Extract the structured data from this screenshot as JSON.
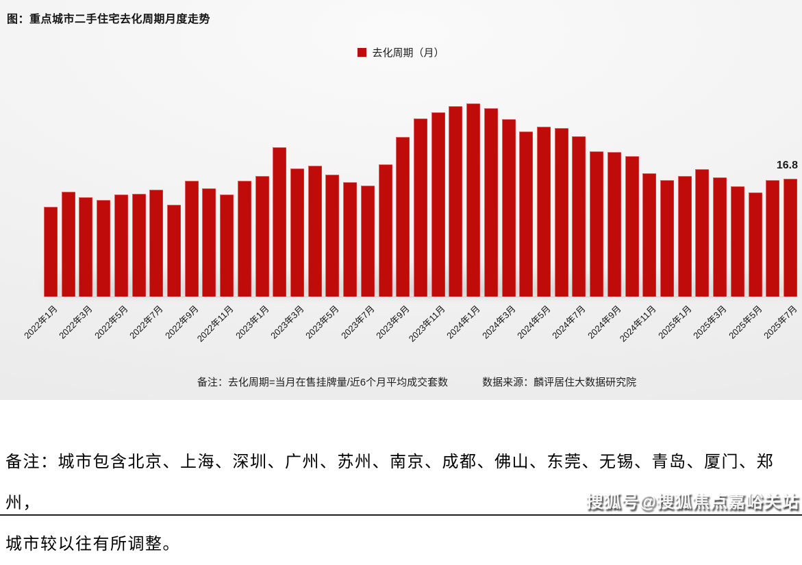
{
  "page": {
    "title": "图：重点城市二手住宅去化周期月度走势",
    "note_left": "备注：去化周期=当月在售挂牌量/近6个月平均成交套数",
    "note_right": "数据来源：麟评居住大数据研究院",
    "footnote_line1": "备注：城市包含北京、上海、深圳、广州、苏州、南京、成都、佛山、东莞、无锡、青岛、厦门、郑州，",
    "footnote_line2": "城市较以往有所调整。",
    "watermark": "搜狐号@搜狐焦点嘉峪关站"
  },
  "chart_data": {
    "type": "bar",
    "title": "图：重点城市二手住宅去化周期月度走势",
    "legend_label": "去化周期（月）",
    "legend_position": "top-center",
    "bar_color": "#c00b0b",
    "grid": false,
    "ylim": [
      0,
      29
    ],
    "x_tick_step": 2,
    "last_value_label": "16.8",
    "categories": [
      "2022年1月",
      "2022年2月",
      "2022年3月",
      "2022年4月",
      "2022年5月",
      "2022年6月",
      "2022年7月",
      "2022年8月",
      "2022年9月",
      "2022年10月",
      "2022年11月",
      "2022年12月",
      "2023年1月",
      "2023年2月",
      "2023年3月",
      "2023年4月",
      "2023年5月",
      "2023年6月",
      "2023年7月",
      "2023年8月",
      "2023年9月",
      "2023年10月",
      "2023年11月",
      "2023年12月",
      "2024年1月",
      "2024年2月",
      "2024年3月",
      "2024年4月",
      "2024年5月",
      "2024年6月",
      "2024年7月",
      "2024年8月",
      "2024年9月",
      "2024年10月",
      "2024年11月",
      "2024年12月",
      "2025年1月",
      "2025年2月",
      "2025年3月",
      "2025年4月",
      "2025年5月",
      "2025年6月",
      "2025年7月"
    ],
    "values": [
      12.8,
      15.0,
      14.2,
      13.8,
      14.6,
      14.7,
      15.3,
      13.1,
      16.5,
      15.5,
      14.6,
      16.5,
      17.2,
      21.3,
      18.3,
      18.7,
      17.4,
      16.3,
      15.9,
      18.9,
      22.8,
      25.4,
      26.3,
      27.2,
      27.6,
      26.9,
      25.3,
      23.6,
      24.3,
      24.1,
      22.9,
      20.7,
      20.6,
      20.1,
      17.6,
      16.6,
      17.2,
      18.2,
      17.0,
      15.8,
      14.9,
      16.6,
      16.8
    ]
  }
}
